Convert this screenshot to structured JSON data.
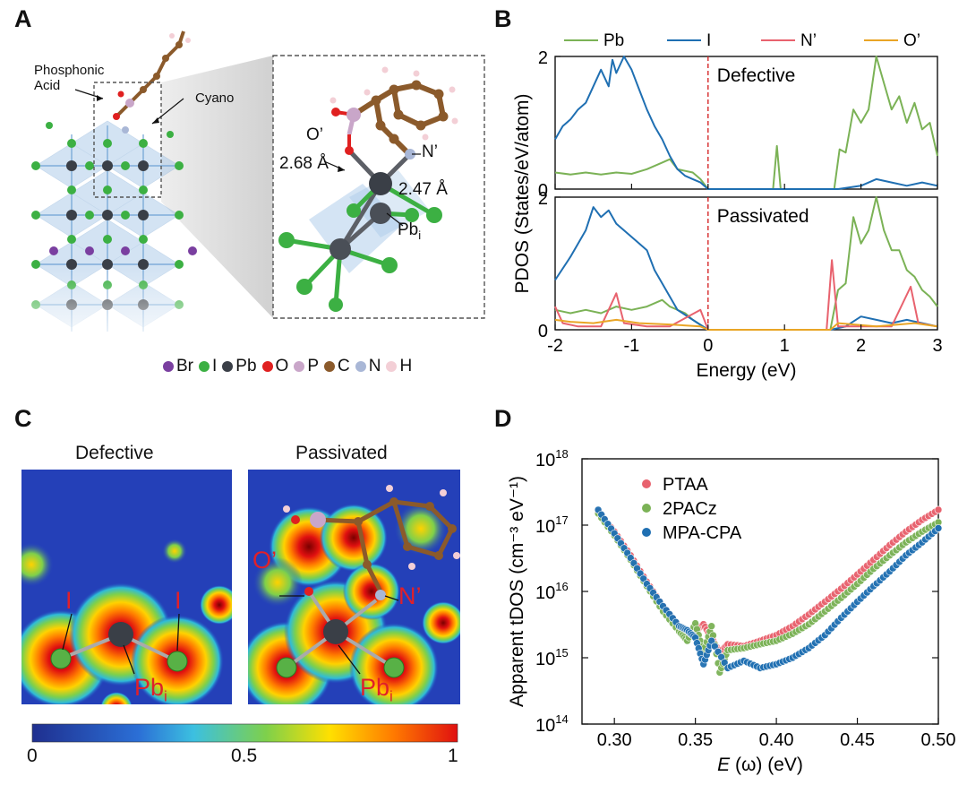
{
  "panels": {
    "a": {
      "letter": "A"
    },
    "b": {
      "letter": "B"
    },
    "c": {
      "letter": "C"
    },
    "d": {
      "letter": "D"
    }
  },
  "panel_a": {
    "labels": {
      "phosphonic": "Phosphonic",
      "acid": "Acid",
      "cyano": "Cyano",
      "o_prime": "O’",
      "n_prime": "N’",
      "dist1": "2.68 Å",
      "dist2": "2.47 Å",
      "pb": "Pb",
      "pb_sub": "i"
    },
    "atom_legend": [
      {
        "label": "Br",
        "color": "#7a3fa0"
      },
      {
        "label": "I",
        "color": "#3cb043"
      },
      {
        "label": "Pb",
        "color": "#3a3f47"
      },
      {
        "label": "O",
        "color": "#e02020"
      },
      {
        "label": "P",
        "color": "#c9a6c9"
      },
      {
        "label": "C",
        "color": "#8b5a2b"
      },
      {
        "label": "N",
        "color": "#a9b7d6"
      },
      {
        "label": "H",
        "color": "#f3cfd6"
      }
    ]
  },
  "panel_c": {
    "title_left": "Defective",
    "title_right": "Passivated",
    "labels": {
      "i": "I",
      "pb": "Pb",
      "pb_sub": "i",
      "o_prime": "O’",
      "n_prime": "N’"
    },
    "colorbar_ticks": [
      "0",
      "0.5",
      "1"
    ]
  },
  "chart_data": [
    {
      "type": "line",
      "ylabel": "PDOS (States/eV/atom)",
      "xlabel": "Energy (eV)",
      "xlim": [
        -2,
        3
      ],
      "ylim": [
        0,
        2
      ],
      "xticks": [
        "-2",
        "-1",
        "0",
        "1",
        "2",
        "3"
      ],
      "yticks_top": [
        "0",
        "2"
      ],
      "yticks_bottom": [
        "0",
        "2"
      ],
      "subplot_titles": [
        "Defective",
        "Passivated"
      ],
      "series_names": [
        "Pb",
        "I",
        "N’",
        "O’"
      ],
      "colors": {
        "Pb": "#7bb256",
        "I": "#1f6fb2",
        "N’": "#e8626e",
        "O’": "#e9a526"
      },
      "fermi_line_color": "#d62728",
      "defective": {
        "Pb": [
          [
            -2,
            0.25
          ],
          [
            -1.8,
            0.22
          ],
          [
            -1.6,
            0.25
          ],
          [
            -1.4,
            0.22
          ],
          [
            -1.2,
            0.25
          ],
          [
            -1.0,
            0.23
          ],
          [
            -0.8,
            0.3
          ],
          [
            -0.6,
            0.4
          ],
          [
            -0.5,
            0.45
          ],
          [
            -0.4,
            0.3
          ],
          [
            -0.2,
            0.25
          ],
          [
            -0.1,
            0.15
          ],
          [
            0,
            0.0
          ],
          [
            0.85,
            0
          ],
          [
            0.9,
            0.65
          ],
          [
            0.95,
            0
          ],
          [
            1.65,
            0
          ],
          [
            1.72,
            0.6
          ],
          [
            1.8,
            0.55
          ],
          [
            1.9,
            1.2
          ],
          [
            2.0,
            1.0
          ],
          [
            2.1,
            1.2
          ],
          [
            2.2,
            2.0
          ],
          [
            2.3,
            1.6
          ],
          [
            2.4,
            1.2
          ],
          [
            2.5,
            1.4
          ],
          [
            2.6,
            1.0
          ],
          [
            2.7,
            1.3
          ],
          [
            2.8,
            0.9
          ],
          [
            2.9,
            1.0
          ],
          [
            3.0,
            0.5
          ]
        ],
        "I": [
          [
            -2,
            0.75
          ],
          [
            -1.9,
            0.95
          ],
          [
            -1.8,
            1.05
          ],
          [
            -1.7,
            1.2
          ],
          [
            -1.6,
            1.3
          ],
          [
            -1.5,
            1.55
          ],
          [
            -1.4,
            1.8
          ],
          [
            -1.3,
            1.55
          ],
          [
            -1.25,
            1.95
          ],
          [
            -1.2,
            1.75
          ],
          [
            -1.1,
            2.0
          ],
          [
            -1.0,
            1.8
          ],
          [
            -0.9,
            1.5
          ],
          [
            -0.8,
            1.2
          ],
          [
            -0.7,
            0.95
          ],
          [
            -0.6,
            0.75
          ],
          [
            -0.5,
            0.5
          ],
          [
            -0.4,
            0.3
          ],
          [
            -0.3,
            0.2
          ],
          [
            -0.2,
            0.15
          ],
          [
            -0.1,
            0.1
          ],
          [
            0,
            0.0
          ],
          [
            1.7,
            0.0
          ],
          [
            2.0,
            0.05
          ],
          [
            2.2,
            0.15
          ],
          [
            2.4,
            0.1
          ],
          [
            2.6,
            0.05
          ],
          [
            2.8,
            0.1
          ],
          [
            3.0,
            0.05
          ]
        ]
      },
      "passivated": {
        "Pb": [
          [
            -2,
            0.3
          ],
          [
            -1.8,
            0.25
          ],
          [
            -1.6,
            0.3
          ],
          [
            -1.4,
            0.25
          ],
          [
            -1.2,
            0.35
          ],
          [
            -1.0,
            0.3
          ],
          [
            -0.8,
            0.35
          ],
          [
            -0.6,
            0.45
          ],
          [
            -0.5,
            0.35
          ],
          [
            -0.3,
            0.25
          ],
          [
            -0.2,
            0.15
          ],
          [
            0,
            0.0
          ],
          [
            1.6,
            0.0
          ],
          [
            1.7,
            0.6
          ],
          [
            1.8,
            0.7
          ],
          [
            1.9,
            1.7
          ],
          [
            2.0,
            1.3
          ],
          [
            2.1,
            1.5
          ],
          [
            2.2,
            2.0
          ],
          [
            2.3,
            1.5
          ],
          [
            2.4,
            1.2
          ],
          [
            2.5,
            1.2
          ],
          [
            2.6,
            0.9
          ],
          [
            2.7,
            0.8
          ],
          [
            2.8,
            0.6
          ],
          [
            2.9,
            0.5
          ],
          [
            3.0,
            0.35
          ]
        ],
        "I": [
          [
            -2,
            0.75
          ],
          [
            -1.8,
            1.1
          ],
          [
            -1.6,
            1.5
          ],
          [
            -1.5,
            1.85
          ],
          [
            -1.4,
            1.7
          ],
          [
            -1.3,
            1.8
          ],
          [
            -1.2,
            1.6
          ],
          [
            -1.0,
            1.4
          ],
          [
            -0.9,
            1.3
          ],
          [
            -0.8,
            1.2
          ],
          [
            -0.7,
            0.9
          ],
          [
            -0.6,
            0.7
          ],
          [
            -0.5,
            0.5
          ],
          [
            -0.4,
            0.3
          ],
          [
            -0.2,
            0.15
          ],
          [
            0,
            0.0
          ],
          [
            1.6,
            0.0
          ],
          [
            1.8,
            0.05
          ],
          [
            2.0,
            0.2
          ],
          [
            2.2,
            0.15
          ],
          [
            2.4,
            0.1
          ],
          [
            2.6,
            0.15
          ],
          [
            2.8,
            0.1
          ],
          [
            3.0,
            0.05
          ]
        ],
        "N’": [
          [
            -2,
            0.35
          ],
          [
            -1.9,
            0.1
          ],
          [
            -1.7,
            0.05
          ],
          [
            -1.4,
            0.05
          ],
          [
            -1.2,
            0.55
          ],
          [
            -1.1,
            0.1
          ],
          [
            -0.8,
            0.05
          ],
          [
            -0.5,
            0.05
          ],
          [
            -0.1,
            0.3
          ],
          [
            0,
            0.0
          ],
          [
            1.55,
            0.0
          ],
          [
            1.62,
            1.05
          ],
          [
            1.7,
            0.05
          ],
          [
            2.4,
            0.05
          ],
          [
            2.65,
            0.65
          ],
          [
            2.75,
            0.1
          ],
          [
            3.0,
            0.05
          ]
        ],
        "O’": [
          [
            -2,
            0.15
          ],
          [
            -1.8,
            0.12
          ],
          [
            -1.5,
            0.1
          ],
          [
            -1.2,
            0.15
          ],
          [
            -0.9,
            0.1
          ],
          [
            -0.5,
            0.08
          ],
          [
            -0.1,
            0.05
          ],
          [
            0,
            0.0
          ],
          [
            1.6,
            0.0
          ],
          [
            1.7,
            0.1
          ],
          [
            2.2,
            0.05
          ],
          [
            2.7,
            0.1
          ],
          [
            3.0,
            0.05
          ]
        ]
      }
    },
    {
      "type": "scatter",
      "ylabel": "Apparent tDOS (cm⁻³ eV⁻¹)",
      "xlabel": "E (ω) (eV)",
      "xlabel_italic": "E",
      "xlabel_rest": " (ω) (eV)",
      "xlim": [
        0.28,
        0.5
      ],
      "ylog": true,
      "ylim": [
        100000000000000.0,
        1e+18
      ],
      "xticks": [
        "0.30",
        "0.35",
        "0.40",
        "0.45",
        "0.50"
      ],
      "yticks": [
        {
          "base": "10",
          "exp": "14"
        },
        {
          "base": "10",
          "exp": "15"
        },
        {
          "base": "10",
          "exp": "16"
        },
        {
          "base": "10",
          "exp": "17"
        },
        {
          "base": "10",
          "exp": "18"
        }
      ],
      "series": [
        {
          "name": "PTAA",
          "color": "#e8626e",
          "points": [
            [
              0.29,
              1.6e+17
            ],
            [
              0.3,
              8e+16
            ],
            [
              0.31,
              3.5e+16
            ],
            [
              0.32,
              1.4e+16
            ],
            [
              0.33,
              6000000000000000.0
            ],
            [
              0.34,
              3000000000000000.0
            ],
            [
              0.345,
              2200000000000000.0
            ],
            [
              0.35,
              2500000000000000.0
            ],
            [
              0.355,
              3200000000000000.0
            ],
            [
              0.36,
              2000000000000000.0
            ],
            [
              0.365,
              1200000000000000.0
            ],
            [
              0.37,
              1600000000000000.0
            ],
            [
              0.38,
              1500000000000000.0
            ],
            [
              0.39,
              1800000000000000.0
            ],
            [
              0.4,
              2200000000000000.0
            ],
            [
              0.41,
              3000000000000000.0
            ],
            [
              0.42,
              4500000000000000.0
            ],
            [
              0.43,
              7000000000000000.0
            ],
            [
              0.44,
              1.1e+16
            ],
            [
              0.45,
              1.8e+16
            ],
            [
              0.46,
              3e+16
            ],
            [
              0.47,
              5e+16
            ],
            [
              0.48,
              8e+16
            ],
            [
              0.49,
              1.2e+17
            ],
            [
              0.5,
              1.7e+17
            ]
          ]
        },
        {
          "name": "2PACz",
          "color": "#7bb256",
          "points": [
            [
              0.29,
              1.5e+17
            ],
            [
              0.3,
              7e+16
            ],
            [
              0.31,
              3e+16
            ],
            [
              0.32,
              1.2e+16
            ],
            [
              0.33,
              5000000000000000.0
            ],
            [
              0.34,
              2500000000000000.0
            ],
            [
              0.345,
              1800000000000000.0
            ],
            [
              0.35,
              3300000000000000.0
            ],
            [
              0.355,
              1200000000000000.0
            ],
            [
              0.36,
              3000000000000000.0
            ],
            [
              0.365,
              600000000000000.0
            ],
            [
              0.37,
              1300000000000000.0
            ],
            [
              0.38,
              1400000000000000.0
            ],
            [
              0.39,
              1600000000000000.0
            ],
            [
              0.4,
              1800000000000000.0
            ],
            [
              0.41,
              2300000000000000.0
            ],
            [
              0.42,
              3200000000000000.0
            ],
            [
              0.43,
              5000000000000000.0
            ],
            [
              0.44,
              8000000000000000.0
            ],
            [
              0.45,
              1.3e+16
            ],
            [
              0.46,
              2.2e+16
            ],
            [
              0.47,
              3.5e+16
            ],
            [
              0.48,
              5.5e+16
            ],
            [
              0.49,
              8e+16
            ],
            [
              0.5,
              1.1e+17
            ]
          ]
        },
        {
          "name": "MPA-CPA",
          "color": "#1f6fb2",
          "points": [
            [
              0.29,
              1.7e+17
            ],
            [
              0.3,
              7.5e+16
            ],
            [
              0.31,
              3.2e+16
            ],
            [
              0.32,
              1.3e+16
            ],
            [
              0.33,
              6000000000000000.0
            ],
            [
              0.34,
              3000000000000000.0
            ],
            [
              0.345,
              2600000000000000.0
            ],
            [
              0.35,
              2000000000000000.0
            ],
            [
              0.355,
              800000000000000.0
            ],
            [
              0.36,
              1800000000000000.0
            ],
            [
              0.37,
              700000000000000.0
            ],
            [
              0.38,
              900000000000000.0
            ],
            [
              0.39,
              700000000000000.0
            ],
            [
              0.4,
              800000000000000.0
            ],
            [
              0.41,
              1000000000000000.0
            ],
            [
              0.42,
              1400000000000000.0
            ],
            [
              0.43,
              2200000000000000.0
            ],
            [
              0.44,
              4000000000000000.0
            ],
            [
              0.45,
              7000000000000000.0
            ],
            [
              0.46,
              1.2e+16
            ],
            [
              0.47,
              2e+16
            ],
            [
              0.48,
              3.5e+16
            ],
            [
              0.49,
              5.5e+16
            ],
            [
              0.5,
              9e+16
            ]
          ]
        }
      ]
    }
  ]
}
